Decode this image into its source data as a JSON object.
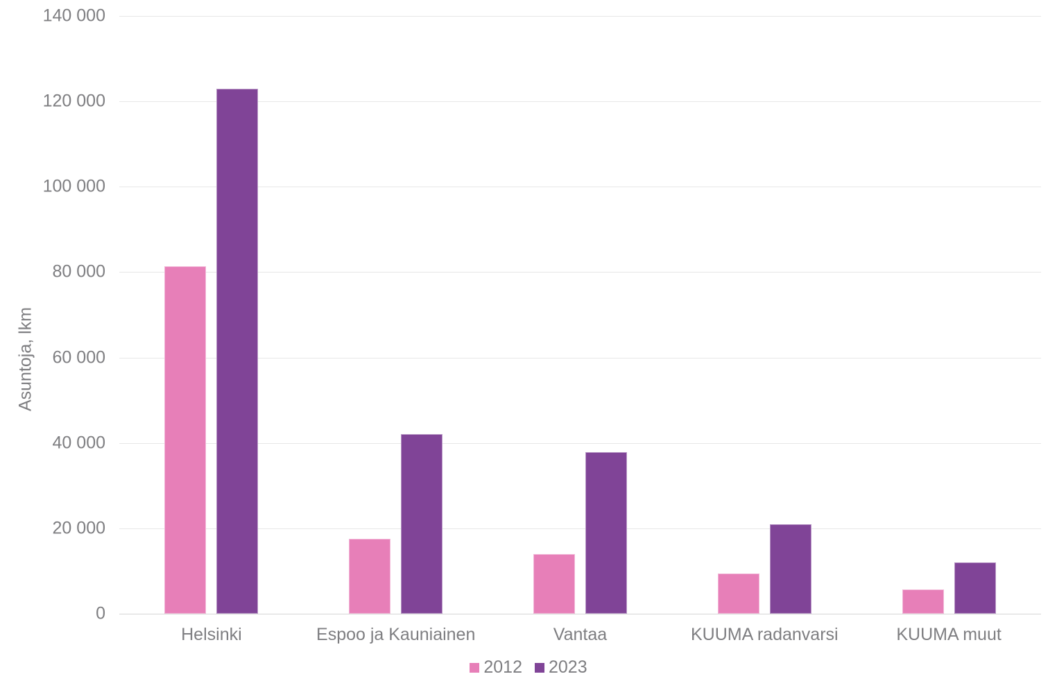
{
  "chart_data": {
    "type": "bar",
    "title": "",
    "categories": [
      "Helsinki",
      "Espoo ja Kauniainen",
      "Vantaa",
      "KUUMA radanvarsi",
      "KUUMA muut"
    ],
    "series": [
      {
        "name": "2012",
        "color": "#e77fb8",
        "values": [
          81300,
          17500,
          14000,
          9400,
          5700
        ]
      },
      {
        "name": "2023",
        "color": "#804497",
        "values": [
          123000,
          42000,
          37900,
          21000,
          12000
        ]
      }
    ],
    "xlabel": "",
    "ylabel": "Asuntoja, lkm",
    "ylim": [
      0,
      140000
    ],
    "yticks": [
      0,
      20000,
      40000,
      60000,
      80000,
      100000,
      120000,
      140000
    ],
    "ytick_labels": [
      "0",
      "20 000",
      "40 000",
      "60 000",
      "80 000",
      "100 000",
      "120 000",
      "140 000"
    ],
    "grid": true,
    "legend_position": "bottom-center"
  },
  "colors": {
    "series_2012": "#e77fb8",
    "series_2023": "#804497",
    "axis_text": "#7e7e81",
    "gridline": "#e7e7e7",
    "baseline": "#d5d5d5",
    "background": "#ffffff"
  }
}
